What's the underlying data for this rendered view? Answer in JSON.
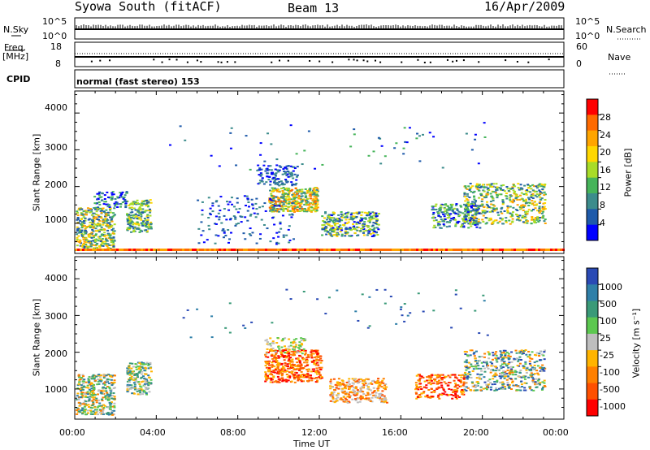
{
  "header": {
    "station": "Syowa South (fitACF)",
    "beam": "Beam 13",
    "date": "16/Apr/2009"
  },
  "panels_top": {
    "nsky_label": "N.Sky",
    "nsky_ticks": [
      "10^5",
      "10^0"
    ],
    "nsearch_label": "N.Search",
    "nsearch_ticks": [
      "10^5",
      "10^0"
    ],
    "freq_label": "Freq.",
    "freq_unit": "[MHz]",
    "freq_ticks": [
      "18",
      "8"
    ],
    "nave_label": "Nave",
    "nave_ticks": [
      "60",
      "0"
    ],
    "cpid_label": "CPID",
    "cpid_value": "normal (fast stereo) 153"
  },
  "chart_data": [
    {
      "type": "heatmap",
      "name": "power-panel",
      "xlabel": "",
      "ylabel": "Slant Range [km]",
      "ylim": [
        180,
        4600
      ],
      "yticks": [
        "4000",
        "3000",
        "2000",
        "1000"
      ],
      "colorbar": {
        "label": "Power [dB]",
        "ticks": [
          "28",
          "24",
          "20",
          "16",
          "12",
          "8",
          "4"
        ],
        "colors": [
          "#ff0000",
          "#ff6a00",
          "#ffa500",
          "#ffd700",
          "#a8dc28",
          "#46b45a",
          "#3c8c8c",
          "#1e5aaa",
          "#0000ff"
        ]
      }
    },
    {
      "type": "heatmap",
      "name": "velocity-panel",
      "xlabel": "Time UT",
      "ylabel": "Slant Range [km]",
      "ylim": [
        180,
        4600
      ],
      "xticks": [
        "00:00",
        "04:00",
        "08:00",
        "12:00",
        "16:00",
        "20:00",
        "00:00"
      ],
      "yticks": [
        "4000",
        "3000",
        "2000",
        "1000"
      ],
      "colorbar": {
        "label": "Velocity [m s⁻¹]",
        "ticks": [
          "1000",
          "500",
          "100",
          "25",
          "-25",
          "-100",
          "-500",
          "-1000"
        ],
        "colors": [
          "#2a4ab5",
          "#2f7fa8",
          "#3a9a78",
          "#5cc850",
          "#bebebe",
          "#ffb400",
          "#ff8000",
          "#ff5000",
          "#ff0000"
        ]
      }
    }
  ]
}
